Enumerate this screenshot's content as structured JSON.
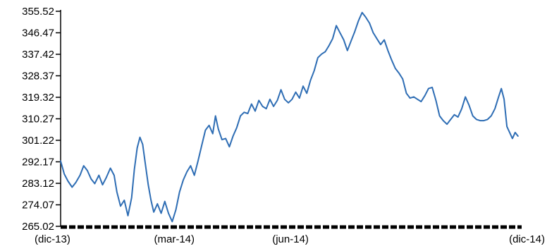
{
  "chart_data": {
    "type": "line",
    "title": "",
    "xlabel": "",
    "ylabel": "",
    "ylim": [
      265.02,
      355.52
    ],
    "y_ticks": [
      "355.52",
      "346.47",
      "337.42",
      "328.37",
      "319.32",
      "310.27",
      "301.22",
      "292.17",
      "283.12",
      "274.07",
      "265.02"
    ],
    "x_ticks": [
      {
        "label": "(dic-13)",
        "t": 0.0
      },
      {
        "label": "(mar-14)",
        "t": 0.2466
      },
      {
        "label": "(jun-14)",
        "t": 0.4986
      },
      {
        "label": "(dic-14)",
        "t": 1.0
      }
    ],
    "grid": false,
    "line_color": "#2e6db4",
    "series": [
      {
        "name": "",
        "points": [
          [
            0.0,
            292.5
          ],
          [
            0.008,
            287.0
          ],
          [
            0.016,
            284.0
          ],
          [
            0.025,
            281.5
          ],
          [
            0.033,
            283.5
          ],
          [
            0.042,
            286.5
          ],
          [
            0.05,
            290.5
          ],
          [
            0.058,
            288.5
          ],
          [
            0.066,
            285.0
          ],
          [
            0.074,
            283.0
          ],
          [
            0.083,
            286.5
          ],
          [
            0.091,
            282.5
          ],
          [
            0.099,
            285.5
          ],
          [
            0.108,
            289.5
          ],
          [
            0.116,
            286.5
          ],
          [
            0.122,
            279.5
          ],
          [
            0.13,
            273.5
          ],
          [
            0.138,
            276.0
          ],
          [
            0.146,
            269.5
          ],
          [
            0.154,
            277.0
          ],
          [
            0.16,
            289.0
          ],
          [
            0.166,
            298.0
          ],
          [
            0.172,
            302.5
          ],
          [
            0.178,
            299.5
          ],
          [
            0.184,
            291.0
          ],
          [
            0.19,
            282.5
          ],
          [
            0.196,
            276.0
          ],
          [
            0.202,
            271.0
          ],
          [
            0.21,
            274.5
          ],
          [
            0.218,
            270.5
          ],
          [
            0.226,
            275.5
          ],
          [
            0.234,
            270.5
          ],
          [
            0.242,
            267.0
          ],
          [
            0.25,
            272.0
          ],
          [
            0.258,
            279.5
          ],
          [
            0.266,
            284.5
          ],
          [
            0.274,
            288.0
          ],
          [
            0.282,
            290.5
          ],
          [
            0.29,
            286.5
          ],
          [
            0.298,
            292.5
          ],
          [
            0.306,
            299.0
          ],
          [
            0.314,
            305.5
          ],
          [
            0.322,
            307.5
          ],
          [
            0.33,
            304.0
          ],
          [
            0.336,
            311.5
          ],
          [
            0.342,
            306.0
          ],
          [
            0.35,
            301.5
          ],
          [
            0.358,
            302.0
          ],
          [
            0.366,
            298.5
          ],
          [
            0.374,
            303.0
          ],
          [
            0.382,
            306.5
          ],
          [
            0.39,
            311.5
          ],
          [
            0.398,
            313.0
          ],
          [
            0.406,
            312.5
          ],
          [
            0.414,
            316.5
          ],
          [
            0.422,
            313.5
          ],
          [
            0.43,
            318.0
          ],
          [
            0.438,
            315.5
          ],
          [
            0.446,
            314.5
          ],
          [
            0.454,
            318.5
          ],
          [
            0.462,
            315.5
          ],
          [
            0.47,
            318.0
          ],
          [
            0.478,
            322.5
          ],
          [
            0.486,
            318.5
          ],
          [
            0.494,
            317.0
          ],
          [
            0.502,
            318.5
          ],
          [
            0.51,
            321.5
          ],
          [
            0.518,
            319.0
          ],
          [
            0.526,
            324.0
          ],
          [
            0.534,
            321.0
          ],
          [
            0.542,
            326.5
          ],
          [
            0.55,
            330.5
          ],
          [
            0.558,
            336.0
          ],
          [
            0.566,
            337.5
          ],
          [
            0.574,
            338.5
          ],
          [
            0.582,
            341.0
          ],
          [
            0.59,
            344.0
          ],
          [
            0.598,
            349.5
          ],
          [
            0.606,
            346.5
          ],
          [
            0.614,
            343.5
          ],
          [
            0.622,
            339.0
          ],
          [
            0.63,
            343.0
          ],
          [
            0.638,
            347.0
          ],
          [
            0.646,
            351.5
          ],
          [
            0.654,
            355.0
          ],
          [
            0.662,
            353.0
          ],
          [
            0.67,
            350.5
          ],
          [
            0.678,
            346.5
          ],
          [
            0.686,
            344.0
          ],
          [
            0.694,
            341.5
          ],
          [
            0.702,
            343.5
          ],
          [
            0.71,
            339.0
          ],
          [
            0.718,
            335.0
          ],
          [
            0.726,
            331.5
          ],
          [
            0.734,
            329.5
          ],
          [
            0.742,
            327.0
          ],
          [
            0.75,
            321.0
          ],
          [
            0.758,
            319.0
          ],
          [
            0.766,
            319.5
          ],
          [
            0.774,
            318.5
          ],
          [
            0.782,
            317.5
          ],
          [
            0.79,
            320.0
          ],
          [
            0.798,
            323.0
          ],
          [
            0.806,
            323.5
          ],
          [
            0.814,
            318.0
          ],
          [
            0.822,
            311.5
          ],
          [
            0.83,
            309.5
          ],
          [
            0.838,
            308.0
          ],
          [
            0.846,
            310.0
          ],
          [
            0.854,
            312.0
          ],
          [
            0.862,
            311.0
          ],
          [
            0.87,
            314.5
          ],
          [
            0.878,
            319.5
          ],
          [
            0.886,
            316.0
          ],
          [
            0.894,
            311.5
          ],
          [
            0.902,
            310.0
          ],
          [
            0.91,
            309.5
          ],
          [
            0.918,
            309.5
          ],
          [
            0.926,
            310.0
          ],
          [
            0.934,
            311.5
          ],
          [
            0.942,
            314.5
          ],
          [
            0.95,
            319.5
          ],
          [
            0.956,
            323.0
          ],
          [
            0.962,
            318.5
          ],
          [
            0.968,
            307.0
          ],
          [
            0.974,
            304.5
          ],
          [
            0.98,
            302.0
          ],
          [
            0.986,
            304.5
          ],
          [
            0.992,
            303.0
          ]
        ]
      }
    ]
  }
}
